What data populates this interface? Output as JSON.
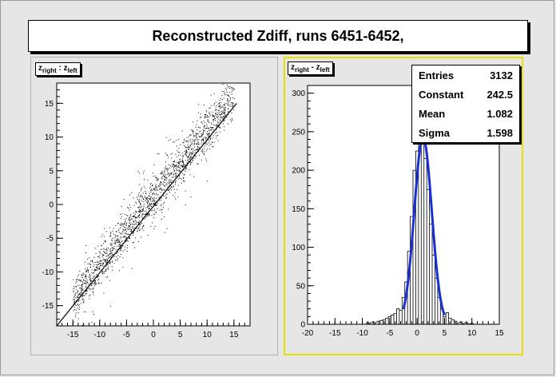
{
  "title": "Reconstructed Zdiff, runs 6451-6452,",
  "left_pad": {
    "label_main": "z",
    "label_sub1": "right",
    "label_sep": " : z",
    "label_sub2": "left"
  },
  "right_pad": {
    "label_main": "z",
    "label_sub1": "right",
    "label_sep": " - z",
    "label_sub2": "left",
    "accent_color": "#e8e000"
  },
  "stats": {
    "entries_label": "Entries",
    "entries_value": "3132",
    "constant_label": "Constant",
    "constant_value": "242.5",
    "mean_label": "Mean",
    "mean_value": "1.082",
    "sigma_label": "Sigma",
    "sigma_value": "1.598"
  },
  "chart_data": [
    {
      "type": "scatter",
      "title": "",
      "xlabel": "",
      "ylabel": "",
      "xlim": [
        -18,
        18
      ],
      "ylim": [
        -18,
        18
      ],
      "xticks": [
        -15,
        -10,
        -5,
        0,
        5,
        10,
        15
      ],
      "yticks": [
        -15,
        -10,
        -5,
        0,
        5,
        10,
        15
      ],
      "fit_line": {
        "x": [
          -18,
          15.5
        ],
        "y": [
          -18,
          15
        ]
      },
      "n_points": 3132,
      "grid": false
    },
    {
      "type": "bar",
      "title": "",
      "xlabel": "",
      "ylabel": "",
      "xlim": [
        -20,
        15
      ],
      "ylim": [
        0,
        310
      ],
      "xticks": [
        -20,
        -15,
        -10,
        -5,
        0,
        5,
        10,
        15
      ],
      "yticks": [
        0,
        50,
        100,
        150,
        200,
        250,
        300
      ],
      "fit_color": "#1a2fd0",
      "fit": {
        "constant": 242.5,
        "mean": 1.082,
        "sigma": 1.598,
        "range": [
          -2.5,
          5.0
        ]
      },
      "hist_bins": {
        "x": [
          -9,
          -8,
          -7,
          -6.5,
          -6,
          -5.5,
          -5,
          -4.5,
          -4,
          -3.5,
          -3,
          -2.5,
          -2,
          -1.5,
          -1,
          -0.5,
          0,
          0.5,
          1,
          1.5,
          2,
          2.5,
          3,
          3.5,
          4,
          4.5,
          5,
          5.5,
          6,
          6.5,
          7,
          8,
          9,
          10
        ],
        "y": [
          2,
          3,
          4,
          5,
          6,
          8,
          10,
          12,
          14,
          20,
          18,
          35,
          55,
          95,
          140,
          200,
          225,
          245,
          240,
          215,
          175,
          130,
          90,
          60,
          35,
          20,
          10,
          15,
          8,
          6,
          4,
          3,
          2,
          1
        ]
      },
      "grid": false
    }
  ]
}
